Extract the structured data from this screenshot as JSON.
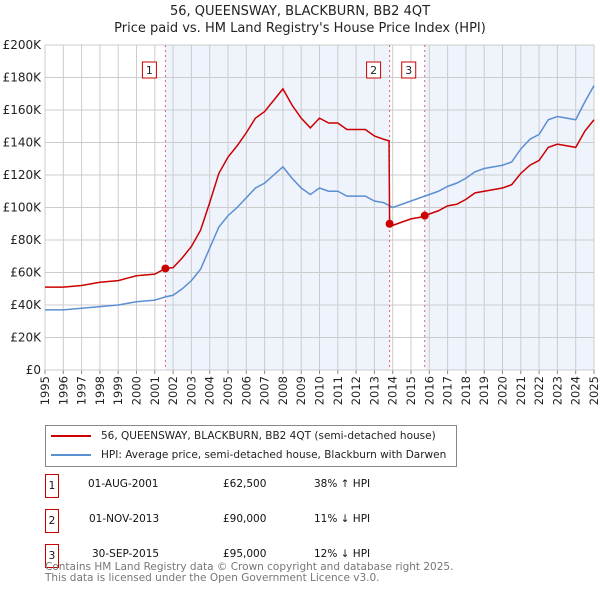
{
  "title": "56, QUEENSWAY, BLACKBURN, BB2 4QT",
  "subtitle": "Price paid vs. HM Land Registry's House Price Index (HPI)",
  "chart_data": {
    "type": "line",
    "title": "56, QUEENSWAY, BLACKBURN, BB2 4QT",
    "subtitle": "Price paid vs. HM Land Registry's House Price Index (HPI)",
    "xlabel": "",
    "ylabel": "",
    "xlim": [
      1995,
      2025
    ],
    "ylim": [
      0,
      200000
    ],
    "x_ticks": [
      "1995",
      "1996",
      "1997",
      "1998",
      "1999",
      "2000",
      "2001",
      "2002",
      "2003",
      "2004",
      "2005",
      "2006",
      "2007",
      "2008",
      "2009",
      "2010",
      "2011",
      "2012",
      "2013",
      "2014",
      "2015",
      "2016",
      "2017",
      "2018",
      "2019",
      "2020",
      "2021",
      "2022",
      "2023",
      "2024",
      "2025"
    ],
    "y_ticks": [
      {
        "value": 0,
        "label": "£0"
      },
      {
        "value": 20000,
        "label": "£20K"
      },
      {
        "value": 40000,
        "label": "£40K"
      },
      {
        "value": 60000,
        "label": "£60K"
      },
      {
        "value": 80000,
        "label": "£80K"
      },
      {
        "value": 100000,
        "label": "£100K"
      },
      {
        "value": 120000,
        "label": "£120K"
      },
      {
        "value": 140000,
        "label": "£140K"
      },
      {
        "value": 160000,
        "label": "£160K"
      },
      {
        "value": 180000,
        "label": "£180K"
      },
      {
        "value": 200000,
        "label": "£200K"
      }
    ],
    "grid": true,
    "series": [
      {
        "name": "56, QUEENSWAY, BLACKBURN, BB2 4QT (semi-detached house)",
        "color": "#cc0000",
        "points": [
          [
            1995,
            51000
          ],
          [
            1996,
            51000
          ],
          [
            1997,
            52000
          ],
          [
            1998,
            54000
          ],
          [
            1999,
            55000
          ],
          [
            2000,
            58000
          ],
          [
            2001,
            59000
          ],
          [
            2001.58,
            62500
          ],
          [
            2002,
            63000
          ],
          [
            2002.5,
            69000
          ],
          [
            2003,
            76000
          ],
          [
            2003.5,
            86000
          ],
          [
            2004,
            103000
          ],
          [
            2004.5,
            121000
          ],
          [
            2005,
            131000
          ],
          [
            2005.5,
            138000
          ],
          [
            2006,
            146000
          ],
          [
            2006.5,
            155000
          ],
          [
            2007,
            159000
          ],
          [
            2007.5,
            166000
          ],
          [
            2008,
            173000
          ],
          [
            2008.5,
            163000
          ],
          [
            2009,
            155000
          ],
          [
            2009.5,
            149000
          ],
          [
            2010,
            155000
          ],
          [
            2010.5,
            152000
          ],
          [
            2011,
            152000
          ],
          [
            2011.5,
            148000
          ],
          [
            2012,
            148000
          ],
          [
            2012.5,
            148000
          ],
          [
            2013,
            144000
          ],
          [
            2013.5,
            142000
          ],
          [
            2013.8,
            141000
          ],
          [
            2013.83,
            90000
          ],
          [
            2014,
            89000
          ],
          [
            2014.5,
            91000
          ],
          [
            2015,
            93000
          ],
          [
            2015.5,
            94000
          ],
          [
            2015.75,
            95000
          ],
          [
            2016,
            96000
          ],
          [
            2016.5,
            98000
          ],
          [
            2017,
            101000
          ],
          [
            2017.5,
            102000
          ],
          [
            2018,
            105000
          ],
          [
            2018.5,
            109000
          ],
          [
            2019,
            110000
          ],
          [
            2019.5,
            111000
          ],
          [
            2020,
            112000
          ],
          [
            2020.5,
            114000
          ],
          [
            2021,
            121000
          ],
          [
            2021.5,
            126000
          ],
          [
            2022,
            129000
          ],
          [
            2022.5,
            137000
          ],
          [
            2023,
            139000
          ],
          [
            2023.5,
            138000
          ],
          [
            2024,
            137000
          ],
          [
            2024.5,
            147000
          ],
          [
            2025,
            154000
          ]
        ]
      },
      {
        "name": "HPI: Average price, semi-detached house, Blackburn with Darwen",
        "color": "#5b8fd4",
        "points": [
          [
            1995,
            37000
          ],
          [
            1996,
            37000
          ],
          [
            1997,
            38000
          ],
          [
            1998,
            39000
          ],
          [
            1999,
            40000
          ],
          [
            2000,
            42000
          ],
          [
            2001,
            43000
          ],
          [
            2001.58,
            45000
          ],
          [
            2002,
            46000
          ],
          [
            2002.5,
            50000
          ],
          [
            2003,
            55000
          ],
          [
            2003.5,
            62000
          ],
          [
            2004,
            75000
          ],
          [
            2004.5,
            88000
          ],
          [
            2005,
            95000
          ],
          [
            2005.5,
            100000
          ],
          [
            2006,
            106000
          ],
          [
            2006.5,
            112000
          ],
          [
            2007,
            115000
          ],
          [
            2007.5,
            120000
          ],
          [
            2008,
            125000
          ],
          [
            2008.5,
            118000
          ],
          [
            2009,
            112000
          ],
          [
            2009.5,
            108000
          ],
          [
            2010,
            112000
          ],
          [
            2010.5,
            110000
          ],
          [
            2011,
            110000
          ],
          [
            2011.5,
            107000
          ],
          [
            2012,
            107000
          ],
          [
            2012.5,
            107000
          ],
          [
            2013,
            104000
          ],
          [
            2013.5,
            103000
          ],
          [
            2014,
            100000
          ],
          [
            2014.5,
            102000
          ],
          [
            2015,
            104000
          ],
          [
            2015.5,
            106000
          ],
          [
            2016,
            108000
          ],
          [
            2016.5,
            110000
          ],
          [
            2017,
            113000
          ],
          [
            2017.5,
            115000
          ],
          [
            2018,
            118000
          ],
          [
            2018.5,
            122000
          ],
          [
            2019,
            124000
          ],
          [
            2019.5,
            125000
          ],
          [
            2020,
            126000
          ],
          [
            2020.5,
            128000
          ],
          [
            2021,
            136000
          ],
          [
            2021.5,
            142000
          ],
          [
            2022,
            145000
          ],
          [
            2022.5,
            154000
          ],
          [
            2023,
            156000
          ],
          [
            2023.5,
            155000
          ],
          [
            2024,
            154000
          ],
          [
            2024.5,
            165000
          ],
          [
            2025,
            175000
          ]
        ]
      }
    ],
    "sales": [
      {
        "label": "1",
        "x": 2001.58,
        "price": 62500
      },
      {
        "label": "2",
        "x": 2013.83,
        "price": 90000
      },
      {
        "label": "3",
        "x": 2015.75,
        "price": 95000
      }
    ],
    "legend_placement": "below"
  },
  "legend": {
    "property": "56, QUEENSWAY, BLACKBURN, BB2 4QT (semi-detached house)",
    "hpi": "HPI: Average price, semi-detached house, Blackburn with Darwen"
  },
  "transactions": [
    {
      "num": "1",
      "date": "01-AUG-2001",
      "price": "£62,500",
      "hpi": "38% ↑ HPI"
    },
    {
      "num": "2",
      "date": "01-NOV-2013",
      "price": "£90,000",
      "hpi": "11% ↓ HPI"
    },
    {
      "num": "3",
      "date": "30-SEP-2015",
      "price": "£95,000",
      "hpi": "12% ↓ HPI"
    }
  ],
  "footer": {
    "line1": "Contains HM Land Registry data © Crown copyright and database right 2025.",
    "line2": "This data is licensed under the Open Government Licence v3.0."
  }
}
